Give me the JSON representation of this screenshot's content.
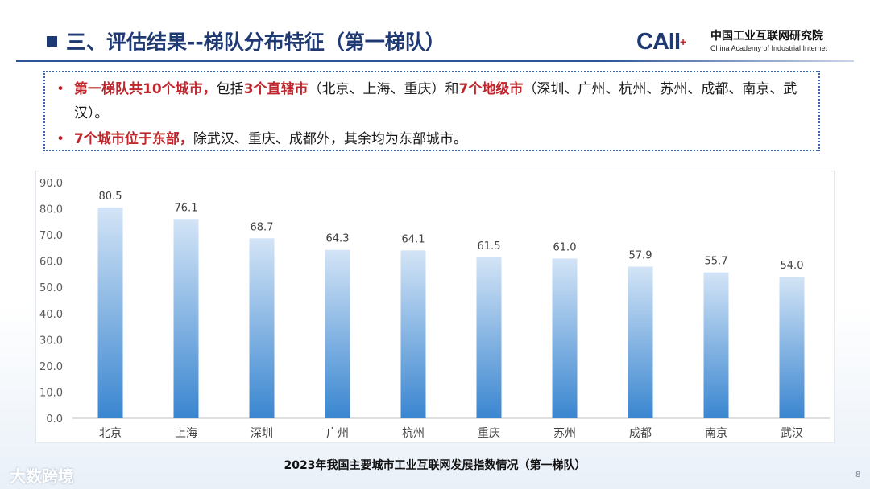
{
  "header": {
    "title": "三、评估结果--梯队分布特征（第一梯队）",
    "logo_text": "CAII",
    "logo_plus": "+",
    "org_cn": "中国工业互联网研究院",
    "org_en": "China Academy of Industrial Internet"
  },
  "bullets": [
    {
      "segments": [
        {
          "text": "第一梯队共10个城市，",
          "highlight": true
        },
        {
          "text": "包括",
          "highlight": false
        },
        {
          "text": "3个直辖市",
          "highlight": true
        },
        {
          "text": "（北京、上海、重庆）和",
          "highlight": false
        },
        {
          "text": "7个地级市",
          "highlight": true
        },
        {
          "text": "（深圳、广州、杭州、苏州、成都、南京、武汉）。",
          "highlight": false
        }
      ]
    },
    {
      "segments": [
        {
          "text": "7个城市位于东部，",
          "highlight": true
        },
        {
          "text": "除武汉、重庆、成都外，其余均为东部城市。",
          "highlight": false
        }
      ]
    }
  ],
  "colors": {
    "title_blue": "#1f3a73",
    "highlight_red": "#c0272d",
    "bar_top": "#d3e4f6",
    "bar_bottom": "#3a86d0"
  },
  "chart_data": {
    "type": "bar",
    "categories": [
      "北京",
      "上海",
      "深圳",
      "广州",
      "杭州",
      "重庆",
      "苏州",
      "成都",
      "南京",
      "武汉"
    ],
    "values": [
      80.5,
      76.1,
      68.7,
      64.3,
      64.1,
      61.5,
      61.0,
      57.9,
      55.7,
      54.0
    ],
    "value_labels": [
      "80.5",
      "76.1",
      "68.7",
      "64.3",
      "64.1",
      "61.5",
      "61.0",
      "57.9",
      "55.7",
      "54.0"
    ],
    "yticks": [
      "0.0",
      "10.0",
      "20.0",
      "30.0",
      "40.0",
      "50.0",
      "60.0",
      "70.0",
      "80.0",
      "90.0"
    ],
    "ylim": [
      0,
      90
    ],
    "grid": false,
    "title": "2023年我国主要城市工业互联网发展指数情况（第一梯队）"
  },
  "footer": {
    "brand": "大数跨境",
    "page_number": "8"
  }
}
